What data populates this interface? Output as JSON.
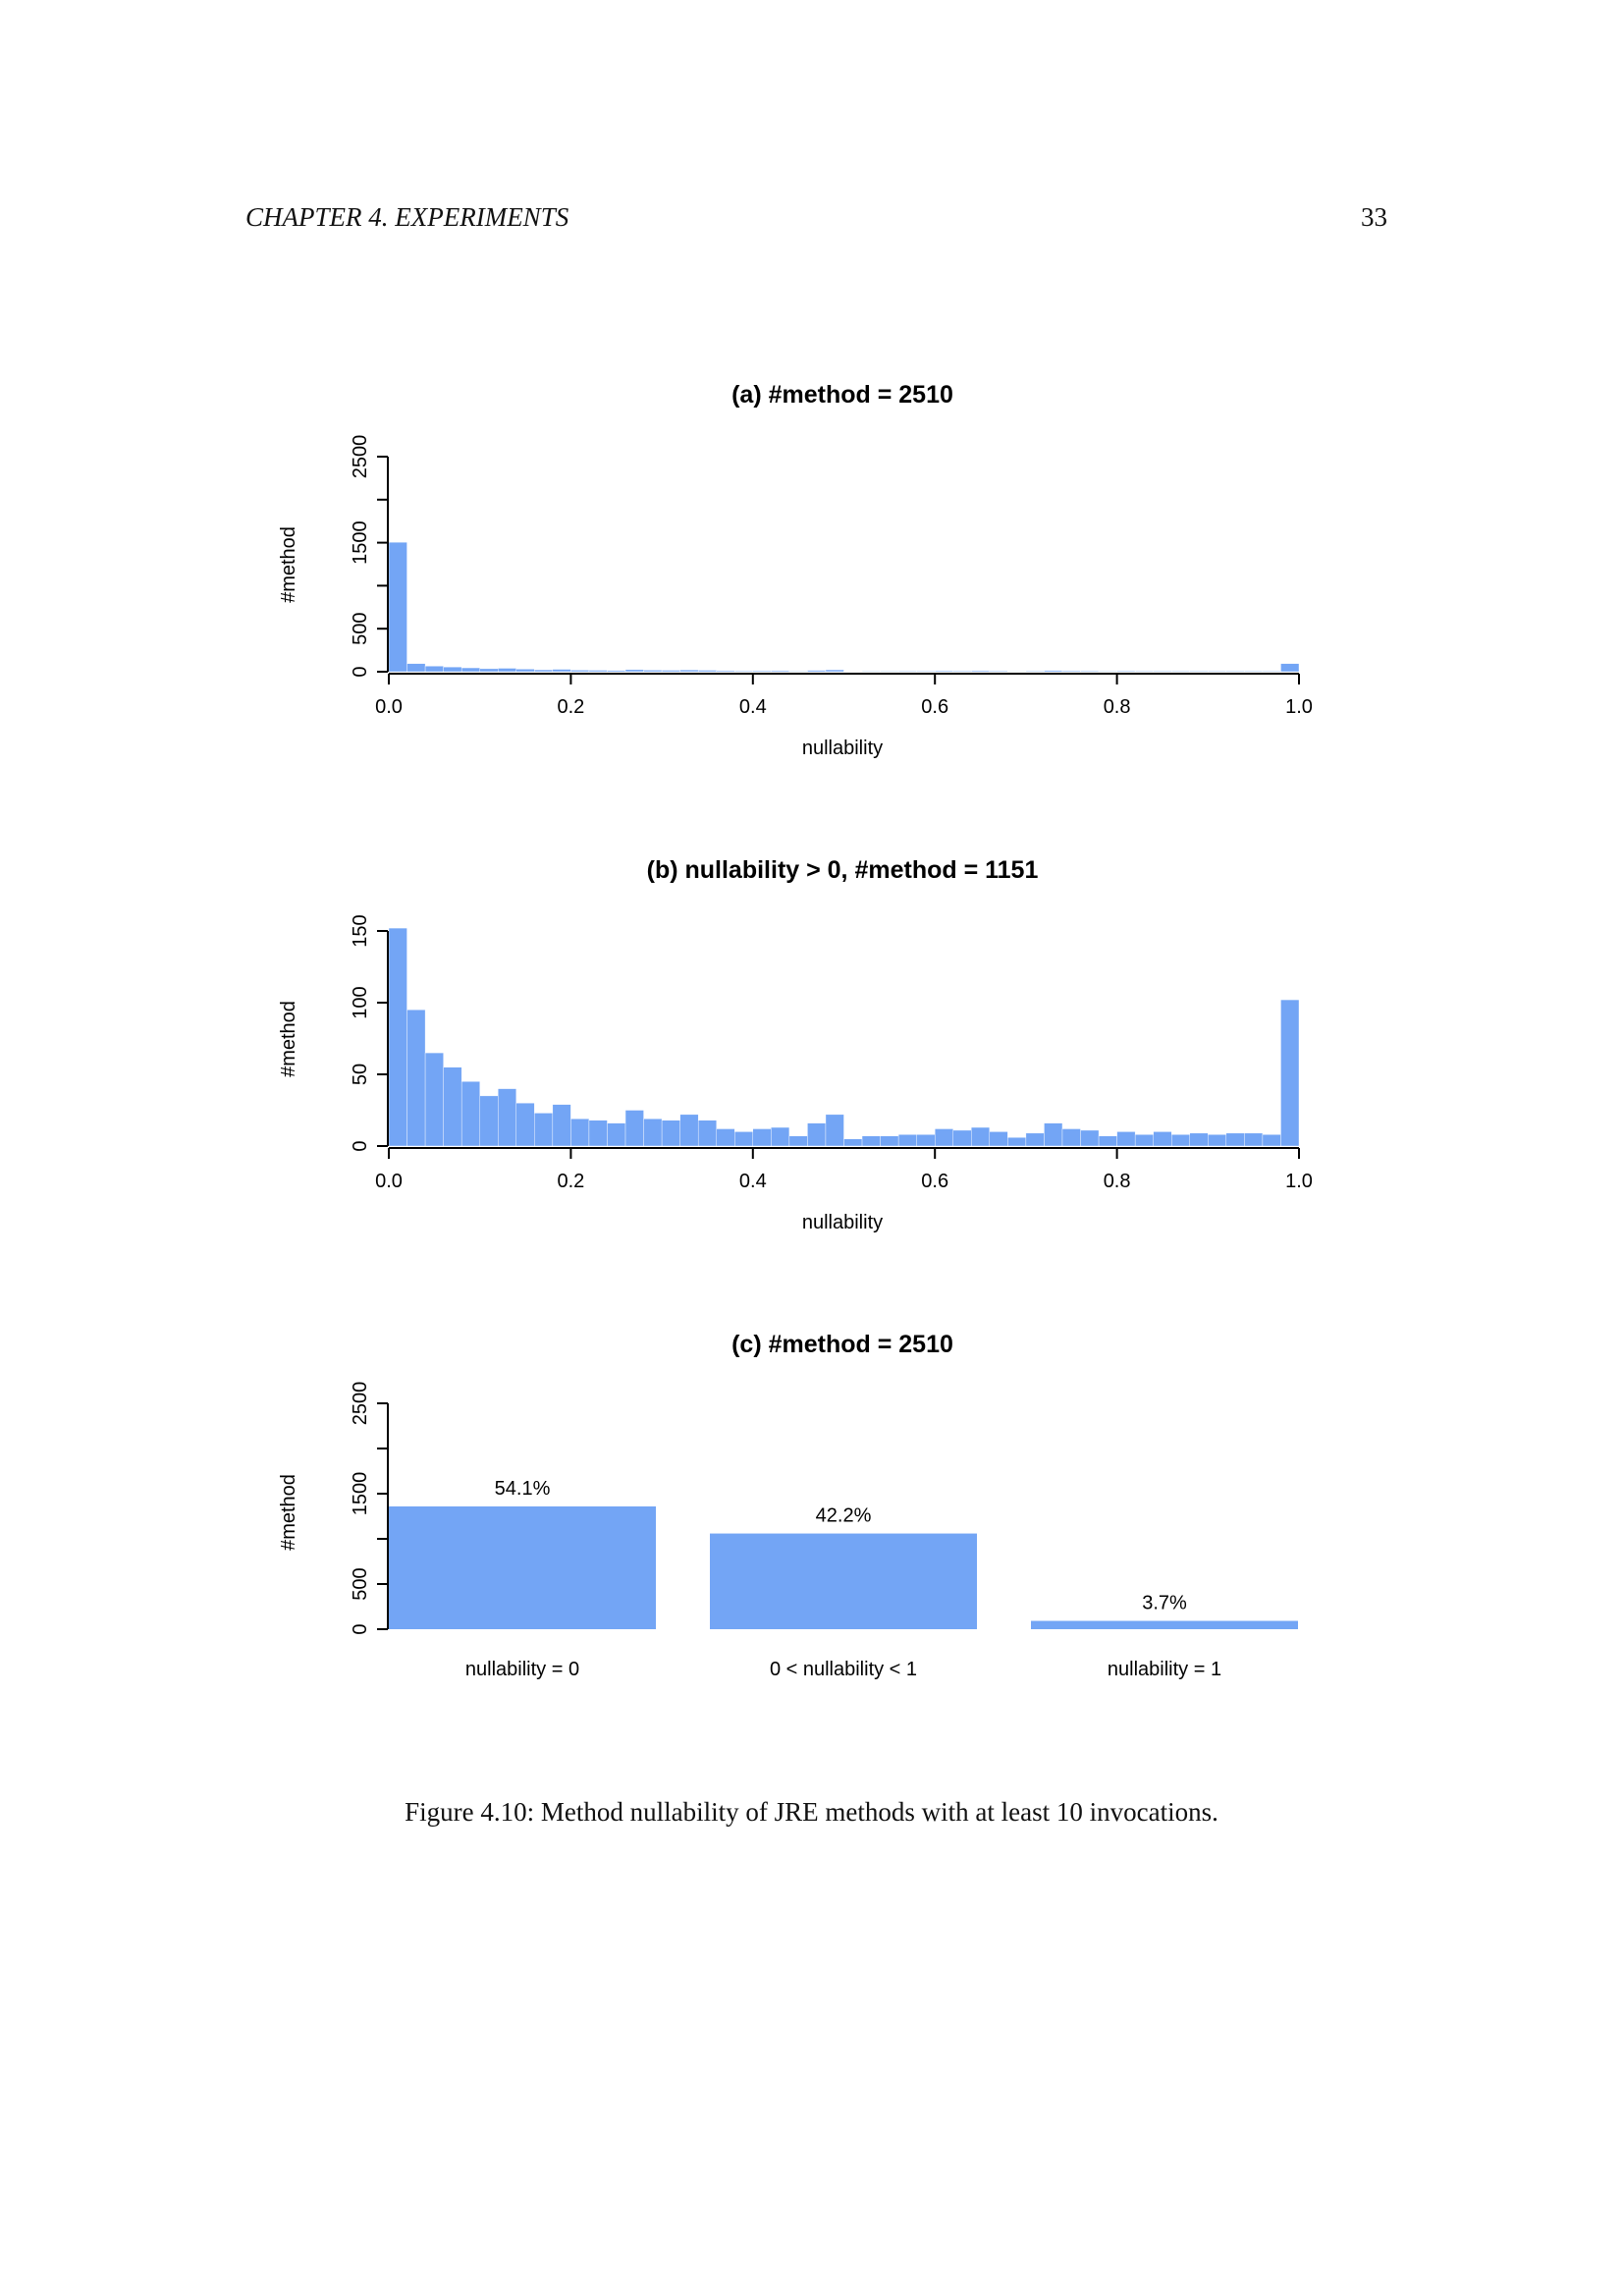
{
  "page": {
    "header_left": "CHAPTER 4.  EXPERIMENTS",
    "page_number": "33",
    "caption": "Figure 4.10: Method nullability of JRE methods with at least 10 invocations."
  },
  "colors": {
    "bar": "#73a5f5",
    "axis": "#000000"
  },
  "chart_data": [
    {
      "type": "bar",
      "title": "(a) #method = 2510",
      "xlabel": "nullability",
      "ylabel": "#method",
      "xlim": [
        0,
        1
      ],
      "ylim": [
        0,
        2500
      ],
      "x_ticks": [
        "0.0",
        "0.2",
        "0.4",
        "0.6",
        "0.8",
        "1.0"
      ],
      "y_ticks": [
        "0",
        "500",
        "1500",
        "2500"
      ],
      "bin_width": 0.02,
      "values": [
        1505,
        95,
        65,
        55,
        45,
        35,
        40,
        30,
        22,
        28,
        18,
        17,
        15,
        24,
        18,
        17,
        21,
        17,
        12,
        10,
        11,
        12,
        7,
        16,
        22,
        5,
        7,
        7,
        8,
        8,
        11,
        10,
        12,
        10,
        6,
        9,
        15,
        11,
        10,
        7,
        10,
        8,
        9,
        8,
        9,
        8,
        9,
        9,
        8,
        95
      ]
    },
    {
      "type": "bar",
      "title": "(b) nullability > 0, #method = 1151",
      "xlabel": "nullability",
      "ylabel": "#method",
      "xlim": [
        0,
        1
      ],
      "ylim": [
        0,
        150
      ],
      "x_ticks": [
        "0.0",
        "0.2",
        "0.4",
        "0.6",
        "0.8",
        "1.0"
      ],
      "y_ticks": [
        "0",
        "50",
        "100",
        "150"
      ],
      "bin_width": 0.02,
      "values": [
        152,
        95,
        65,
        55,
        45,
        35,
        40,
        30,
        23,
        29,
        19,
        18,
        16,
        25,
        19,
        18,
        22,
        18,
        12,
        10,
        12,
        13,
        7,
        16,
        22,
        5,
        7,
        7,
        8,
        8,
        12,
        11,
        13,
        10,
        6,
        9,
        16,
        12,
        11,
        7,
        10,
        8,
        10,
        8,
        9,
        8,
        9,
        9,
        8,
        102
      ]
    },
    {
      "type": "bar",
      "title": "(c) #method = 2510",
      "xlabel": "",
      "ylabel": "#method",
      "ylim": [
        0,
        2500
      ],
      "y_ticks": [
        "0",
        "500",
        "1500",
        "2500"
      ],
      "categories": [
        "nullability = 0",
        "0 < nullability < 1",
        "nullability = 1"
      ],
      "values": [
        1359,
        1059,
        92
      ],
      "labels": [
        "54.1%",
        "42.2%",
        "3.7%"
      ]
    }
  ]
}
